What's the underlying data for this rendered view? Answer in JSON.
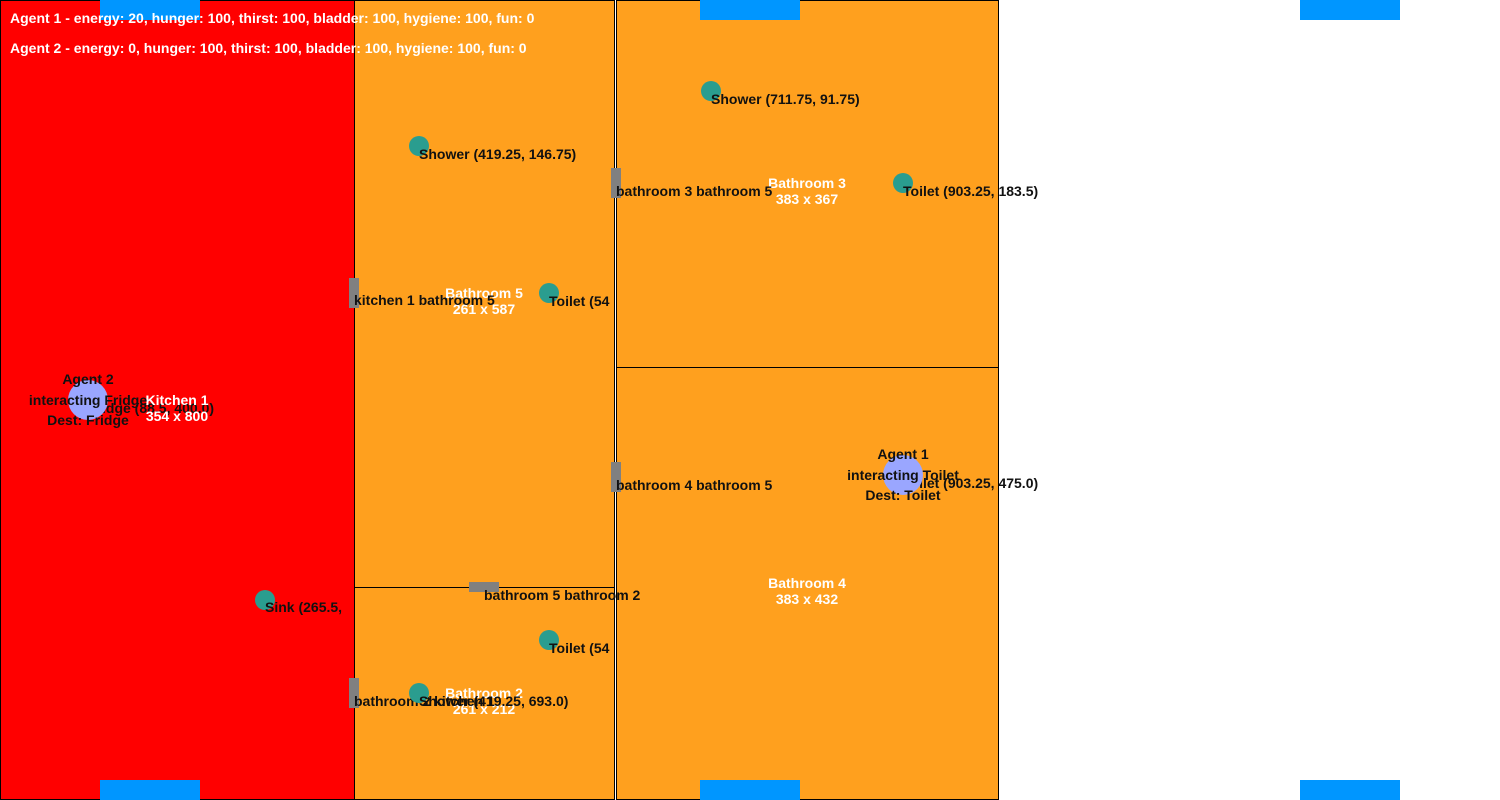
{
  "colors": {
    "kitchen": "#ff0000",
    "bathroom": "#ffa01e",
    "window": "#0096ff",
    "door": "#808080",
    "object": "#2a9d8f",
    "agent": "#9aa6ff"
  },
  "status": {
    "agent1": "Agent 1 - energy: 20, hunger: 100, thirst: 100, bladder: 100, hygiene: 100, fun: 0",
    "agent2": "Agent 2 - energy: 0, hunger: 100, thirst: 100, bladder: 100, hygiene: 100, fun: 0"
  },
  "rooms": {
    "kitchen1": {
      "name": "Kitchen 1",
      "size": "354 x 800"
    },
    "bathroom5": {
      "name": "Bathroom 5",
      "size": "261 x 587"
    },
    "bathroom2": {
      "name": "Bathroom 2",
      "size": "261 x 212"
    },
    "bathroom3": {
      "name": "Bathroom 3",
      "size": "383 x 367"
    },
    "bathroom4": {
      "name": "Bathroom 4",
      "size": "383 x 432"
    }
  },
  "doors": {
    "kitchen1_bathroom5": "kitchen 1 bathroom 5",
    "bathroom5_bathroom2": "bathroom 5 bathroom 2",
    "bathroom3_bathroom5": "bathroom 3 bathroom 5",
    "bathroom4_bathroom5": "bathroom 4 bathroom 5",
    "bathroom2_kitchen1": "bathroom 2 kitchen 1"
  },
  "objects": {
    "shower_b5": "Shower (419.25, 146.75)",
    "toilet_b5": "Toilet (54",
    "shower_b3": "Shower (711.75, 91.75)",
    "toilet_b3": "Toilet (903.25, 183.5)",
    "sink_k1": "Sink (265.5,",
    "toilet_b2": "Toilet (54",
    "shower_b2": "Shower (419.25, 693.0)",
    "fridge_k1": "Fridge (88.5, 400.0)",
    "toilet_b4": "Toilet (903.25, 475.0)"
  },
  "agents": {
    "agent1": {
      "name": "Agent 1",
      "action": "interacting Toilet",
      "dest": "Dest: Toilet"
    },
    "agent2": {
      "name": "Agent 2",
      "action": "interacting Fridge",
      "dest": "Dest: Fridge"
    }
  }
}
